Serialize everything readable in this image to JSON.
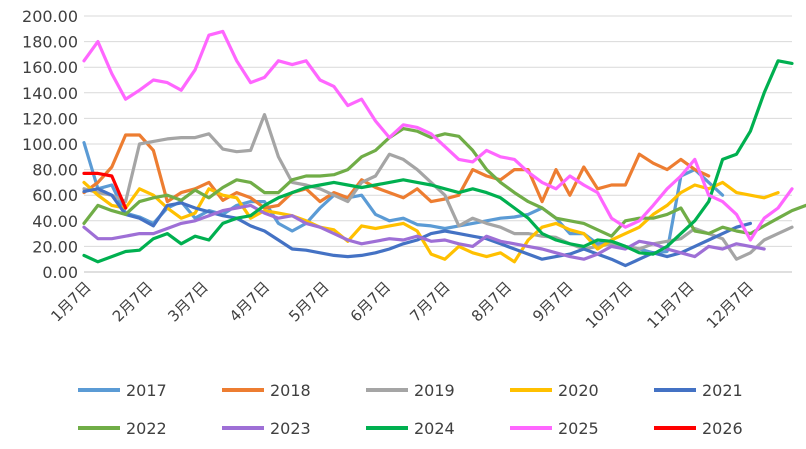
{
  "chart_data": {
    "type": "line",
    "title": "",
    "xlabel": "",
    "ylabel": "",
    "ylim": [
      0,
      200
    ],
    "yticks": [
      "0.00",
      "20.00",
      "40.00",
      "60.00",
      "80.00",
      "100.00",
      "120.00",
      "140.00",
      "160.00",
      "180.00",
      "200.00"
    ],
    "grid": "horizontal",
    "legend_position": "bottom",
    "x_range": [
      1,
      52
    ],
    "x_ticks": [
      {
        "label": "1月7日",
        "x": 1
      },
      {
        "label": "2月7日",
        "x": 5.43
      },
      {
        "label": "3月7日",
        "x": 9.43
      },
      {
        "label": "4月7日",
        "x": 13.86
      },
      {
        "label": "5月7日",
        "x": 18.14
      },
      {
        "label": "6月7日",
        "x": 22.57
      },
      {
        "label": "7月7日",
        "x": 26.86
      },
      {
        "label": "8月7日",
        "x": 31.29
      },
      {
        "label": "9月7日",
        "x": 35.71
      },
      {
        "label": "10月7日",
        "x": 40
      },
      {
        "label": "11月7日",
        "x": 44.43
      },
      {
        "label": "12月7日",
        "x": 48.71
      }
    ],
    "series": [
      {
        "name": "2017",
        "color": "#5B9BD5",
        "x_start": 1,
        "values": [
          101,
          65,
          68,
          46,
          43,
          38,
          50,
          55,
          42,
          48,
          45,
          52,
          55,
          55,
          38,
          32,
          38,
          50,
          60,
          58,
          60,
          45,
          40,
          42,
          37,
          36,
          34,
          36,
          38,
          40,
          42,
          43,
          45,
          50,
          42,
          30,
          30,
          22,
          24,
          20,
          18,
          15,
          16,
          75,
          80,
          70,
          60
        ]
      },
      {
        "name": "2018",
        "color": "#ED7D31",
        "x_start": 1,
        "values": [
          62,
          70,
          82,
          107,
          107,
          95,
          55,
          62,
          65,
          70,
          56,
          62,
          58,
          50,
          52,
          62,
          65,
          55,
          62,
          58,
          72,
          66,
          62,
          58,
          65,
          55,
          57,
          60,
          80,
          75,
          72,
          80,
          80,
          55,
          80,
          60,
          82,
          65,
          68,
          68,
          92,
          85,
          80,
          88,
          80,
          75
        ]
      },
      {
        "name": "2019",
        "color": "#A5A5A5",
        "x_start": 1,
        "values": [
          65,
          62,
          60,
          55,
          100,
          102,
          104,
          105,
          105,
          108,
          96,
          94,
          95,
          123,
          90,
          70,
          68,
          65,
          60,
          55,
          70,
          75,
          92,
          88,
          80,
          70,
          60,
          36,
          42,
          38,
          35,
          30,
          30,
          28,
          27,
          22,
          18,
          20,
          22,
          20,
          18,
          22,
          24,
          26,
          34,
          30,
          26,
          10,
          15,
          25,
          30,
          35
        ]
      },
      {
        "name": "2020",
        "color": "#FFC000",
        "x_start": 1,
        "values": [
          70,
          60,
          52,
          50,
          65,
          60,
          50,
          42,
          46,
          65,
          60,
          58,
          42,
          48,
          46,
          44,
          40,
          35,
          33,
          24,
          36,
          34,
          36,
          38,
          32,
          14,
          10,
          20,
          15,
          12,
          15,
          8,
          25,
          35,
          38,
          33,
          30,
          18,
          25,
          30,
          35,
          45,
          52,
          62,
          68,
          65,
          70,
          62,
          60,
          58,
          62
        ]
      },
      {
        "name": "2021",
        "color": "#4472C4",
        "x_start": 1,
        "values": [
          63,
          65,
          60,
          45,
          42,
          36,
          52,
          54,
          50,
          47,
          44,
          42,
          36,
          32,
          25,
          18,
          17,
          15,
          13,
          12,
          13,
          15,
          18,
          22,
          25,
          30,
          32,
          30,
          28,
          26,
          22,
          18,
          14,
          10,
          12,
          14,
          18,
          14,
          10,
          5,
          10,
          15,
          12,
          15,
          20,
          25,
          30,
          35,
          38
        ]
      },
      {
        "name": "2022",
        "color": "#70AD47",
        "x_start": 1,
        "values": [
          38,
          52,
          48,
          45,
          55,
          58,
          60,
          56,
          64,
          58,
          66,
          72,
          70,
          62,
          62,
          72,
          75,
          75,
          76,
          80,
          90,
          95,
          105,
          112,
          110,
          105,
          108,
          106,
          95,
          80,
          70,
          62,
          55,
          50,
          42,
          40,
          38,
          33,
          28,
          40,
          42,
          42,
          45,
          50,
          32,
          30,
          35,
          32,
          30,
          36,
          42,
          48,
          52
        ]
      },
      {
        "name": "2023",
        "color": "#9E6FD6",
        "x_start": 1,
        "values": [
          35,
          26,
          26,
          28,
          30,
          30,
          34,
          38,
          40,
          44,
          48,
          50,
          52,
          46,
          42,
          44,
          38,
          35,
          30,
          25,
          22,
          24,
          26,
          25,
          28,
          24,
          25,
          22,
          20,
          28,
          24,
          22,
          20,
          18,
          15,
          12,
          10,
          14,
          20,
          18,
          24,
          22,
          18,
          15,
          12,
          20,
          18,
          22,
          20,
          18
        ]
      },
      {
        "name": "2024",
        "color": "#00B050",
        "x_start": 1,
        "values": [
          13,
          8,
          12,
          16,
          17,
          26,
          30,
          22,
          28,
          25,
          38,
          42,
          44,
          52,
          58,
          62,
          66,
          68,
          70,
          68,
          66,
          68,
          70,
          72,
          70,
          68,
          65,
          62,
          65,
          62,
          58,
          50,
          42,
          30,
          25,
          22,
          20,
          25,
          24,
          20,
          15,
          14,
          20,
          30,
          40,
          55,
          88,
          92,
          110,
          140,
          165,
          163
        ]
      },
      {
        "name": "2025",
        "color": "#FF66FF",
        "x_start": 1,
        "values": [
          165,
          180,
          155,
          135,
          142,
          150,
          148,
          142,
          158,
          185,
          188,
          165,
          148,
          152,
          165,
          162,
          165,
          150,
          145,
          130,
          135,
          118,
          105,
          115,
          113,
          108,
          98,
          88,
          86,
          95,
          90,
          88,
          78,
          70,
          65,
          75,
          68,
          62,
          42,
          35,
          40,
          52,
          65,
          75,
          88,
          60,
          55,
          45,
          25,
          42,
          50,
          65
        ]
      },
      {
        "name": "2026",
        "color": "#FF0000",
        "x_start": 1,
        "values": [
          77,
          77,
          75,
          50
        ]
      }
    ]
  }
}
